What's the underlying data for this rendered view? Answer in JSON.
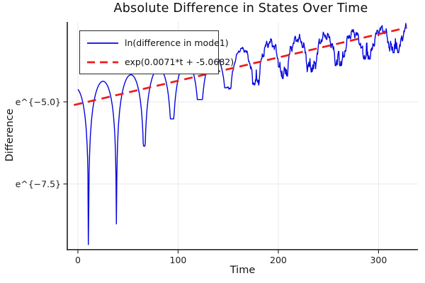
{
  "chart_data": {
    "type": "line",
    "title": "Absolute Difference in States Over Time",
    "xlabel": "Time",
    "ylabel": "Difference",
    "x_ticks": [
      {
        "value": 0,
        "label": "0"
      },
      {
        "value": 100,
        "label": "100"
      },
      {
        "value": 200,
        "label": "200"
      },
      {
        "value": 300,
        "label": "300"
      }
    ],
    "y_ticks": [
      {
        "log_value": -5.0,
        "label": "e^{−5.0}"
      },
      {
        "log_value": -7.5,
        "label": "e^{−7.5}"
      }
    ],
    "xlim": [
      -10.6,
      339.3
    ],
    "ylim_log": [
      -9.5,
      -2.565
    ],
    "grid": true,
    "legend_position": "top-left",
    "series": [
      {
        "name": "ln(difference in mode1)",
        "color": "#0404dd",
        "style": "solid",
        "description": "log of absolute difference; oscillating humps above growing trend with sharp downward cusps at near-zero crossings; becomes noisy after t≈145",
        "model": {
          "log_trend_slope": 0.0071,
          "log_trend_intercept": -5.0682,
          "peak_offset_above_trend": 0.52,
          "peak_offset_decay_start_t": 195,
          "peak_offset_decay_per_t": 0.0036,
          "dip_first_t": 10.6,
          "dip_period": 27.8,
          "dip_log_values": [
            -9.35,
            -8.72,
            -6.35,
            -5.52,
            -4.93
          ],
          "late_dip_depth_below_trend": 0.56,
          "noise_start_t": 142,
          "noise_max_amp": 0.16,
          "t_start": 0,
          "t_end": 328,
          "dt": 0.4
        }
      },
      {
        "name": "exp(0.0071*t + -5.0682)",
        "color": "#ee1a1a",
        "style": "dashed",
        "log_slope": 0.0071,
        "log_intercept": -5.0682,
        "t_start": -4,
        "t_end": 328
      }
    ]
  },
  "colors": {
    "grid": "#e9e9e9",
    "spine": "#2b2b2b",
    "tick_text": "#1c1c1c"
  }
}
